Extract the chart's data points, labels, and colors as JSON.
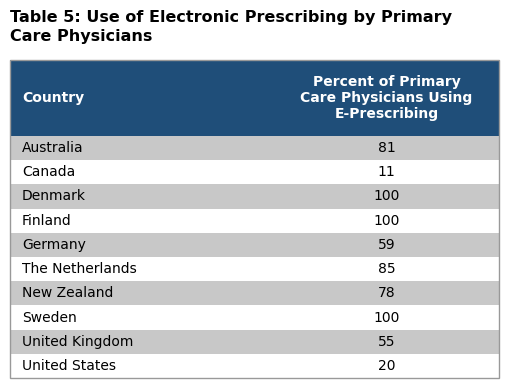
{
  "title": "Table 5: Use of Electronic Prescribing by Primary\nCare Physicians",
  "header": [
    "Country",
    "Percent of Primary\nCare Physicians Using\nE-Prescribing"
  ],
  "rows": [
    [
      "Australia",
      "81"
    ],
    [
      "Canada",
      "11"
    ],
    [
      "Denmark",
      "100"
    ],
    [
      "Finland",
      "100"
    ],
    [
      "Germany",
      "59"
    ],
    [
      "The Netherlands",
      "85"
    ],
    [
      "New Zealand",
      "78"
    ],
    [
      "Sweden",
      "100"
    ],
    [
      "United Kingdom",
      "55"
    ],
    [
      "United States",
      "20"
    ]
  ],
  "header_bg": "#1F4E79",
  "header_text_color": "#FFFFFF",
  "row_colors_alt": [
    "#C8C8C8",
    "#FFFFFF"
  ],
  "shaded_rows": [
    0,
    2,
    4,
    6,
    8
  ],
  "title_fontsize": 11.5,
  "table_fontsize": 10,
  "background_color": "#FFFFFF",
  "border_color": "#999999",
  "fig_width": 5.07,
  "fig_height": 3.86,
  "dpi": 100
}
